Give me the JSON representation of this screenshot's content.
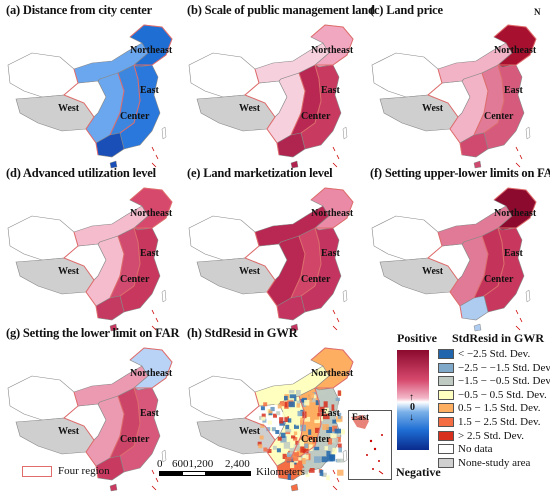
{
  "panels": [
    {
      "title": "(a) Distance from city center",
      "scheme": "blue"
    },
    {
      "title": "(b) Scale of public management land",
      "scheme": "redA"
    },
    {
      "title": "(c) Land price",
      "scheme": "redB"
    },
    {
      "title": "(d) Advanced utilization level",
      "scheme": "redC"
    },
    {
      "title": "(e) Land marketization level",
      "scheme": "redD"
    },
    {
      "title": "(f) Setting upper-lower limits on FAR",
      "scheme": "redE"
    },
    {
      "title": "(g) Setting the lower limit on FAR",
      "scheme": "redF"
    },
    {
      "title": "(h) StdResid in GWR",
      "scheme": "resid"
    }
  ],
  "region_labels": {
    "west": "West",
    "east": "East",
    "center": "Center",
    "northeast": "Northeast"
  },
  "north_arrow": "N",
  "legend": {
    "positive": "Positive",
    "negative": "Negative",
    "zero": "0",
    "resid_title": "StdResid in GWR",
    "classes": [
      {
        "label": "< −2.5 Std. Dev.",
        "color": "#2166ac"
      },
      {
        "label": "−2.5 − −1.5 Std. Dev.",
        "color": "#7fa8c9"
      },
      {
        "label": "−1.5 − −0.5 Std. Dev.",
        "color": "#bfcbc2"
      },
      {
        "label": "−0.5 − 0.5 Std. Dev.",
        "color": "#ffffbf"
      },
      {
        "label": "0.5 − 1.5 Std. Dev.",
        "color": "#fdae61"
      },
      {
        "label": "1.5 − 2.5 Std. Dev.",
        "color": "#f46d43"
      },
      {
        "label": "> 2.5 Std. Dev.",
        "color": "#d7301f"
      },
      {
        "label": "No data",
        "color": "#ffffff"
      },
      {
        "label": "None-study area",
        "color": "#d0d0d0"
      }
    ]
  },
  "four_region": "Four region",
  "scale": {
    "ticks": [
      "0",
      "6001,200",
      "2,400"
    ],
    "unit": "Kilometers"
  },
  "inset_labels": {
    "east": "East"
  }
}
